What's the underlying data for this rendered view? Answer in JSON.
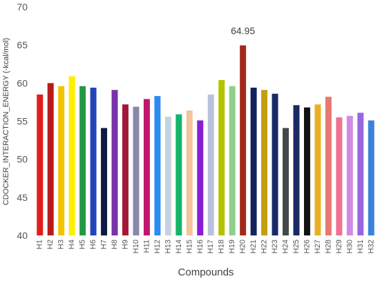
{
  "chart_data": {
    "type": "bar",
    "title": "",
    "xlabel": "Compounds",
    "ylabel": "CDOCKER_INTERACTION_ENERGY (-kcal/mol)",
    "ylim": [
      40,
      70
    ],
    "yticks": [
      40,
      45,
      50,
      55,
      60,
      65,
      70
    ],
    "grid": false,
    "legend": "none",
    "categories": [
      "H1",
      "H2",
      "H3",
      "H4",
      "H5",
      "H6",
      "H7",
      "H8",
      "H9",
      "H10",
      "H11",
      "H12",
      "H13",
      "H14",
      "H15",
      "H16",
      "H17",
      "H18",
      "H19",
      "H20",
      "H21",
      "H22",
      "H23",
      "H24",
      "H25",
      "H26",
      "H27",
      "H28",
      "H29",
      "H30",
      "H31",
      "H32"
    ],
    "values": [
      58.5,
      60.0,
      59.6,
      60.9,
      59.6,
      59.4,
      54.1,
      59.1,
      57.2,
      56.9,
      57.9,
      58.3,
      55.6,
      55.9,
      56.4,
      55.1,
      58.5,
      60.4,
      59.6,
      64.95,
      59.4,
      59.1,
      58.6,
      54.1,
      57.1,
      56.8,
      57.2,
      58.2,
      55.5,
      55.7,
      56.1,
      55.1
    ],
    "colors": [
      "#e11d1d",
      "#b71a1a",
      "#f2c400",
      "#ffee00",
      "#229944",
      "#2244bb",
      "#0f1a44",
      "#7733aa",
      "#a8153a",
      "#8888aa",
      "#c0166b",
      "#2b8cf0",
      "#c5d3e0",
      "#14b56a",
      "#f5c49a",
      "#8a1ed6",
      "#b9c3de",
      "#b2c400",
      "#8fcf8a",
      "#a32a1a",
      "#12235e",
      "#c29f10",
      "#1a2a66",
      "#444848",
      "#1a2a66",
      "#111111",
      "#eab020",
      "#e87870",
      "#f07290",
      "#d18ae6",
      "#9a66e0",
      "#3b82d8"
    ],
    "annotations": [
      {
        "category": "H20",
        "text": "64.95"
      }
    ]
  }
}
